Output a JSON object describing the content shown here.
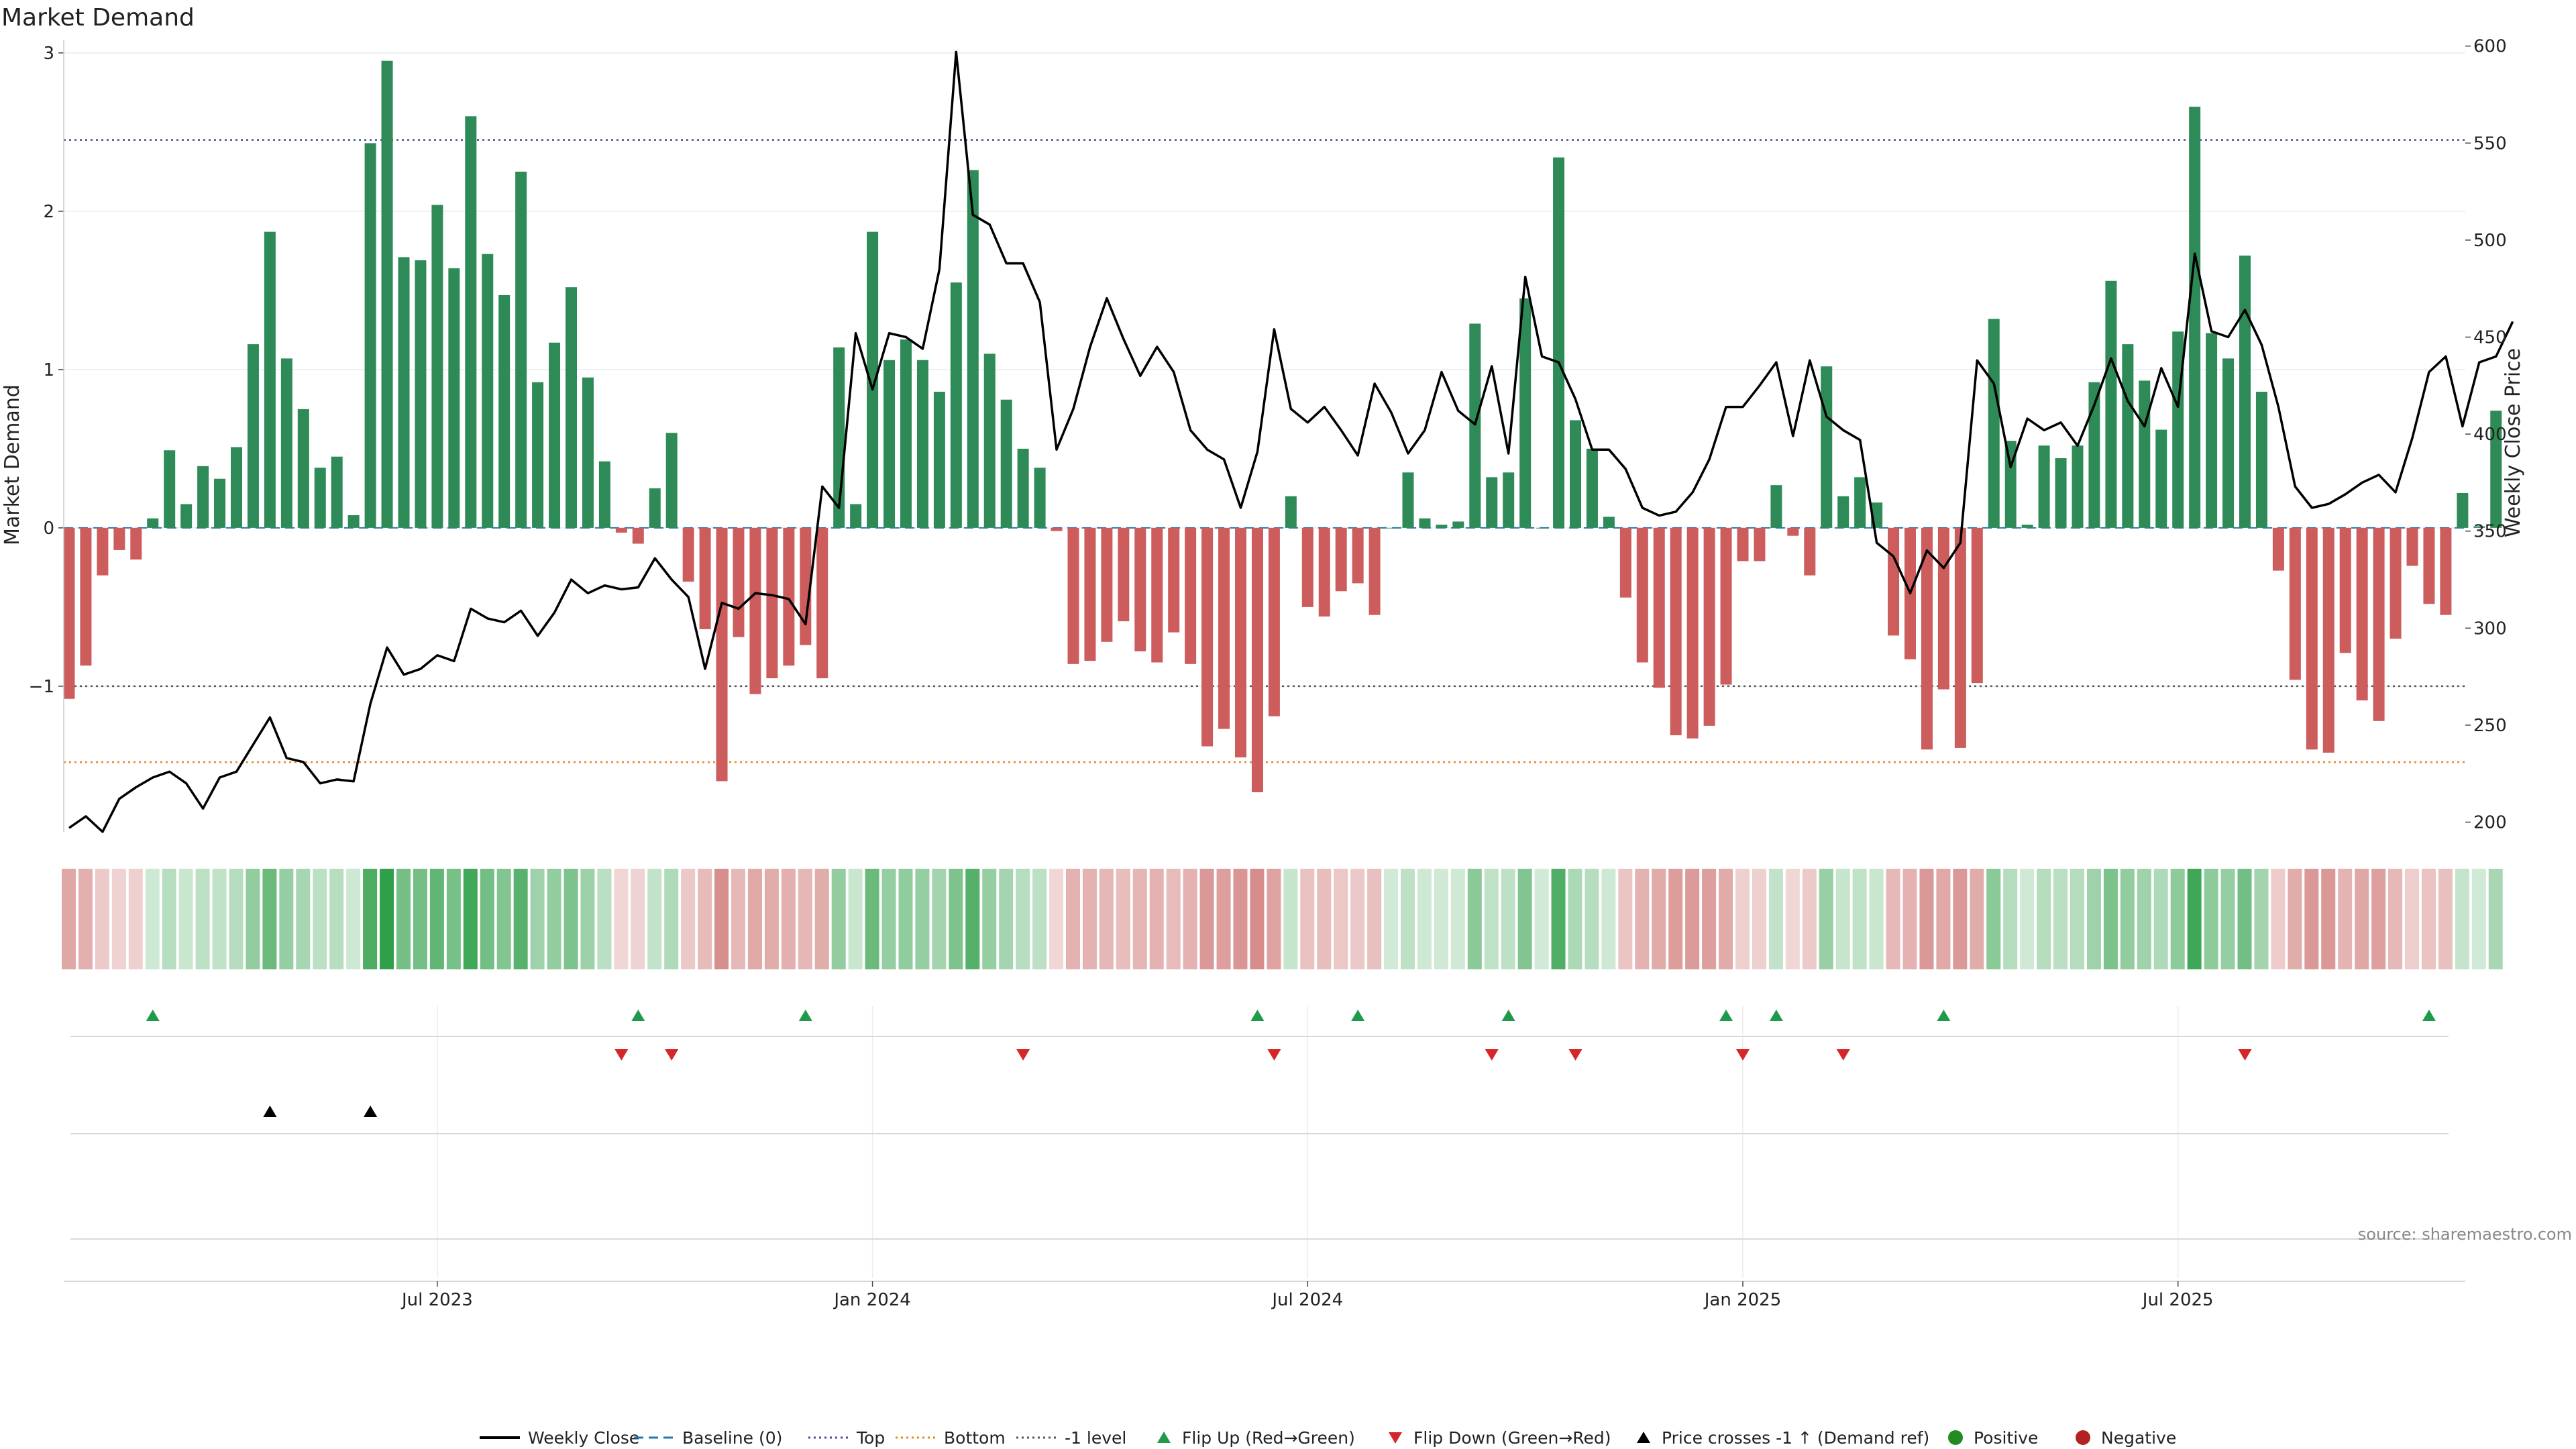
{
  "chart_data": {
    "type": "bar",
    "title": "Market Demand",
    "ylabel": "Market Demand",
    "y2label": "Weekly Close Price",
    "source": "source: sharemaestro.com",
    "ylim": [
      -1.92,
      3.08
    ],
    "y2lim": [
      195,
      603
    ],
    "yticks": [
      {
        "v": 3,
        "label": "3"
      },
      {
        "v": 2,
        "label": "2"
      },
      {
        "v": 1,
        "label": "1"
      },
      {
        "v": 0,
        "label": "0"
      },
      {
        "v": -1,
        "label": "−1"
      }
    ],
    "y2ticks": [
      {
        "v": 600,
        "label": "600"
      },
      {
        "v": 550,
        "label": "550"
      },
      {
        "v": 500,
        "label": "500"
      },
      {
        "v": 450,
        "label": "450"
      },
      {
        "v": 400,
        "label": "400"
      },
      {
        "v": 350,
        "label": "350"
      },
      {
        "v": 300,
        "label": "300"
      },
      {
        "v": 250,
        "label": "250"
      },
      {
        "v": 200,
        "label": "200"
      }
    ],
    "xticks": [
      {
        "week": 22,
        "label": "Jul 2023"
      },
      {
        "week": 48,
        "label": "Jan 2024"
      },
      {
        "week": 74,
        "label": "Jul 2024"
      },
      {
        "week": 100,
        "label": "Jan 2025"
      },
      {
        "week": 126,
        "label": "Jul 2025"
      }
    ],
    "levels": {
      "top": 2.45,
      "bottom": -1.48,
      "minus_one": -1,
      "baseline": 0
    },
    "demand": [
      -1.08,
      -0.87,
      -0.3,
      -0.14,
      -0.2,
      0.06,
      0.49,
      0.15,
      0.39,
      0.31,
      0.51,
      1.16,
      1.87,
      1.07,
      0.75,
      0.38,
      0.45,
      0.08,
      2.43,
      2.95,
      1.71,
      1.69,
      2.04,
      1.64,
      2.6,
      1.73,
      1.47,
      2.25,
      0.92,
      1.17,
      1.52,
      0.95,
      0.42,
      -0.03,
      -0.1,
      0.25,
      0.6,
      -0.34,
      -0.64,
      -1.6,
      -0.69,
      -1.05,
      -0.95,
      -0.87,
      -0.74,
      -0.95,
      1.14,
      0.15,
      1.87,
      1.06,
      1.19,
      1.06,
      0.86,
      1.55,
      2.26,
      1.1,
      0.81,
      0.5,
      0.38,
      -0.02,
      -0.86,
      -0.84,
      -0.72,
      -0.59,
      -0.78,
      -0.85,
      -0.66,
      -0.86,
      -1.38,
      -1.27,
      -1.45,
      -1.67,
      -1.19,
      0.2,
      -0.5,
      -0.56,
      -0.4,
      -0.35,
      -0.55,
      0.0,
      0.35,
      0.06,
      0.02,
      0.04,
      1.29,
      0.32,
      0.35,
      1.45,
      0.0,
      2.34,
      0.68,
      0.5,
      0.07,
      -0.44,
      -0.85,
      -1.01,
      -1.31,
      -1.33,
      -1.25,
      -0.99,
      -0.21,
      -0.21,
      0.27,
      -0.05,
      -0.3,
      1.02,
      0.2,
      0.32,
      0.16,
      -0.68,
      -0.83,
      -1.4,
      -1.02,
      -1.39,
      -0.98,
      1.32,
      0.55,
      0.02,
      0.52,
      0.44,
      0.52,
      0.92,
      1.56,
      1.16,
      0.93,
      0.62,
      1.24,
      2.66,
      1.23,
      1.07,
      1.72,
      0.86,
      -0.27,
      -0.96,
      -1.4,
      -1.42,
      -0.79,
      -1.09,
      -1.22,
      -0.7,
      -0.24,
      -0.48,
      -0.55,
      0.22,
      0.01,
      0.74
    ],
    "weekly_close": [
      197,
      203,
      195,
      212,
      218,
      223,
      226,
      220,
      207,
      223,
      226,
      240,
      254,
      233,
      231,
      220,
      222,
      221,
      261,
      290,
      276,
      279,
      286,
      283,
      310,
      305,
      303,
      309,
      296,
      308,
      325,
      318,
      322,
      320,
      321,
      336,
      325,
      316,
      279,
      313,
      310,
      318,
      317,
      315,
      302,
      373,
      362,
      452,
      423,
      452,
      450,
      444,
      485,
      597,
      513,
      508,
      488,
      488,
      468,
      392,
      413,
      445,
      470,
      449,
      430,
      445,
      432,
      402,
      392,
      387,
      362,
      391,
      454,
      413,
      406,
      414,
      402,
      389,
      426,
      411,
      390,
      402,
      432,
      412,
      405,
      435,
      390,
      481,
      440,
      437,
      418,
      392,
      392,
      382,
      362,
      358,
      360,
      370,
      387,
      414,
      414,
      425,
      437,
      399,
      438,
      409,
      402,
      397,
      344,
      337,
      318,
      340,
      331,
      344,
      438,
      426,
      383,
      408,
      402,
      406,
      394,
      415,
      439,
      417,
      404,
      434,
      414,
      493,
      453,
      450,
      464,
      446,
      414,
      373,
      362,
      364,
      369,
      375,
      379,
      370,
      398,
      432,
      440,
      404,
      437,
      440,
      458
    ],
    "flip_up": [
      5,
      34,
      44,
      71,
      77,
      86,
      99,
      102,
      112,
      141
    ],
    "flip_down": [
      33,
      36,
      57,
      72,
      85,
      90,
      100,
      106,
      130
    ],
    "price_cross": [
      12,
      18
    ],
    "legend": [
      {
        "label": "Weekly Close",
        "kind": "line",
        "color": "#000000"
      },
      {
        "label": "Baseline (0)",
        "kind": "dashed",
        "color": "#1f77b4"
      },
      {
        "label": "Top",
        "kind": "dotted",
        "color": "#4b4b9b"
      },
      {
        "label": "Bottom",
        "kind": "dotted",
        "color": "#e08a1e"
      },
      {
        "label": "-1 level",
        "kind": "dotted",
        "color": "#555555"
      },
      {
        "label": "Flip Up (Red→Green)",
        "kind": "tri-up",
        "color": "#1e9a4a"
      },
      {
        "label": "Flip Down (Green→Red)",
        "kind": "tri-down",
        "color": "#d62728"
      },
      {
        "label": "Price crosses -1 ↑ (Demand ref)",
        "kind": "tri-up",
        "color": "#000000"
      },
      {
        "label": "Positive",
        "kind": "dot",
        "color": "#228b22"
      },
      {
        "label": "Negative",
        "kind": "dot",
        "color": "#b22222"
      }
    ],
    "colors": {
      "positive": "#2e8b57",
      "negative": "#cd5c5c",
      "price": "#000000",
      "heat_pos": "#2e9e47",
      "heat_neg": "#c0504d",
      "flip_up": "#1e9a4a",
      "flip_down": "#d62728",
      "cross": "#000000"
    }
  }
}
